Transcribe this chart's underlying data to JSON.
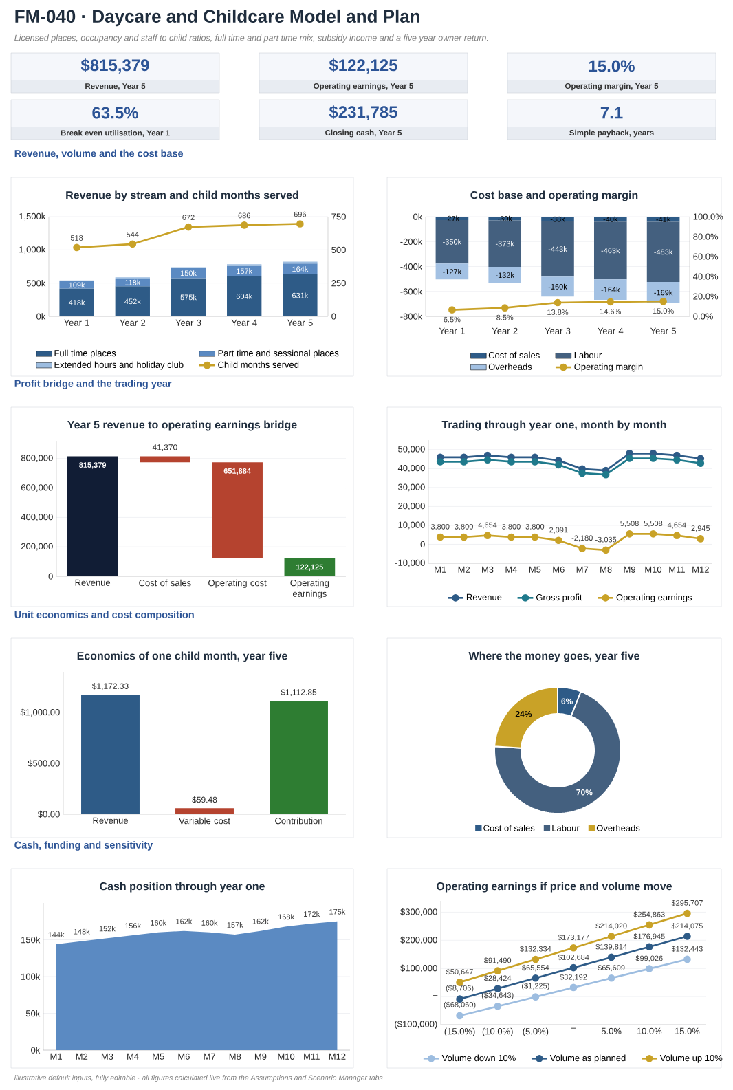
{
  "chart_data": [
    {
      "type": "other",
      "title": "FM-040 · Daycare and Childcare Model and Plan",
      "subtitle": "Licensed places, occupancy and staff to child ratios, full time and part time mix, subsidy income and a five year owner return.",
      "annotations": [
        "$815,379",
        "Revenue, Year 5",
        "$122,125",
        "Operating earnings, Year 5",
        "15.0%",
        "Operating margin, Year 5",
        "63.5%",
        "Break even utilisation, Year 1",
        "$231,785",
        "Closing cash, Year 5",
        "7.1",
        "Simple payback, years",
        "Revenue, volume and the cost base",
        "Profit bridge and the trading year",
        "Unit economics and cost composition",
        "Cash, funding and sensitivity",
        "illustrative default inputs, fully editable · all figures calculated live from the Assumptions and Scenario Manager tabs"
      ]
    },
    {
      "type": "bar",
      "title": "Revenue by stream and child months served",
      "stacked": true,
      "categories": [
        "Year 1",
        "Year 2",
        "Year 3",
        "Year 4",
        "Year 5"
      ],
      "series": [
        {
          "name": "Full time places",
          "color": "#2e5b87",
          "values": [
            418,
            452,
            575,
            604,
            631
          ],
          "value_labels": [
            "418k",
            "452k",
            "575k",
            "604k",
            "631k"
          ]
        },
        {
          "name": "Part time and sessional places",
          "color": "#5b8ac2",
          "values": [
            109,
            118,
            150,
            157,
            164
          ],
          "value_labels": [
            "109k",
            "118k",
            "150k",
            "157k",
            "164k"
          ]
        },
        {
          "name": "Extended hours and holiday club",
          "color": "#9dbde0",
          "values": [
            14,
            16,
            16,
            22,
            28
          ]
        },
        {
          "name": "Child months served",
          "type": "line",
          "axis": "y2",
          "color": "#c9a227",
          "values": [
            518,
            544,
            672,
            686,
            696
          ],
          "value_labels": [
            "518",
            "544",
            "672",
            "686",
            "696"
          ]
        }
      ],
      "ylim": [
        0,
        1500
      ],
      "yticks": [
        {
          "value": 0,
          "label": "0k"
        },
        {
          "value": 500,
          "label": "500k"
        },
        {
          "value": 1000,
          "label": "1,000k"
        },
        {
          "value": 1500,
          "label": "1,500k"
        }
      ],
      "y2lim": [
        0,
        750
      ],
      "y2ticks": [
        0,
        250,
        500,
        750
      ],
      "grid": "y",
      "legend": "bottom",
      "marker": "circle"
    },
    {
      "type": "bar",
      "title": "Cost base and operating margin",
      "stacked": true,
      "categories": [
        "Year 1",
        "Year 2",
        "Year 3",
        "Year 4",
        "Year 5"
      ],
      "series": [
        {
          "name": "Cost of sales",
          "color": "#2e5b87",
          "values": [
            -27,
            -30,
            -38,
            -40,
            -41
          ],
          "value_labels": [
            "-27k",
            "-30k",
            "-38k",
            "-40k",
            "-41k"
          ]
        },
        {
          "name": "Labour",
          "color": "#44607f",
          "values": [
            -350,
            -373,
            -443,
            -463,
            -483
          ],
          "value_labels": [
            "-350k",
            "-373k",
            "-443k",
            "-463k",
            "-483k"
          ]
        },
        {
          "name": "Overheads",
          "color": "#a3c1e3",
          "values": [
            -127,
            -132,
            -160,
            -164,
            -169
          ],
          "value_labels": [
            "-127k",
            "-132k",
            "-160k",
            "-164k",
            "-169k"
          ]
        },
        {
          "name": "Operating margin",
          "type": "line",
          "axis": "y2",
          "color": "#c9a227",
          "values": [
            6.5,
            8.5,
            13.8,
            14.6,
            15.0
          ],
          "value_labels": [
            "6.5%",
            "8.5%",
            "13.8%",
            "14.6%",
            "15.0%"
          ]
        }
      ],
      "ylim": [
        -800,
        0
      ],
      "yticks": [
        {
          "value": -800,
          "label": "-800k"
        },
        {
          "value": -600,
          "label": "-600k"
        },
        {
          "value": -400,
          "label": "-400k"
        },
        {
          "value": -200,
          "label": "-200k"
        },
        {
          "value": 0,
          "label": "0k"
        }
      ],
      "y2lim": [
        0,
        100
      ],
      "y2ticks": [
        {
          "value": 0,
          "label": "0.0%"
        },
        {
          "value": 20,
          "label": "20.0%"
        },
        {
          "value": 40,
          "label": "40.0%"
        },
        {
          "value": 60,
          "label": "60.0%"
        },
        {
          "value": 80,
          "label": "80.0%"
        },
        {
          "value": 100,
          "label": "100.0%"
        }
      ],
      "grid": "y",
      "legend": "bottom",
      "marker": "circle"
    },
    {
      "type": "bar",
      "title": "Year 5 revenue to operating earnings bridge",
      "categories": [
        "Revenue",
        "Cost of sales",
        "Operating cost",
        "Operating earnings"
      ],
      "values": [
        815379,
        41370,
        651884,
        122125
      ],
      "base": [
        0,
        774009,
        122125,
        0
      ],
      "colors": [
        "#111d35",
        "#b5432f",
        "#b5432f",
        "#2e7d32"
      ],
      "value_labels": [
        "815,379",
        "41,370",
        "651,884",
        "122,125"
      ],
      "ylim": [
        0,
        920000
      ],
      "yticks": [
        0,
        {
          "value": 200000,
          "label": "200,000"
        },
        {
          "value": 400000,
          "label": "400,000"
        },
        {
          "value": 600000,
          "label": "600,000"
        },
        {
          "value": 800000,
          "label": "800,000"
        }
      ],
      "grid": "y"
    },
    {
      "type": "line",
      "title": "Trading through year one, month by month",
      "categories": [
        "M1",
        "M2",
        "M3",
        "M4",
        "M5",
        "M6",
        "M7",
        "M8",
        "M9",
        "M10",
        "M11",
        "M12"
      ],
      "series": [
        {
          "name": "Revenue",
          "color": "#2e5b87",
          "values": [
            46000,
            46000,
            47000,
            46000,
            46000,
            44300,
            39800,
            39000,
            48000,
            48000,
            47000,
            45300
          ]
        },
        {
          "name": "Gross profit",
          "color": "#1f7a8c",
          "values": [
            43600,
            43600,
            44600,
            43600,
            43600,
            42000,
            37600,
            36800,
            45400,
            45400,
            44600,
            42800
          ]
        },
        {
          "name": "Operating earnings",
          "color": "#c9a227",
          "values": [
            3800,
            3800,
            4654,
            3800,
            3800,
            2091,
            -2180,
            -3035,
            5508,
            5508,
            4654,
            2945
          ],
          "value_labels": [
            "3,800",
            "3,800",
            "4,654",
            "3,800",
            "3,800",
            "2,091",
            "-2,180",
            "-3,035",
            "5,508",
            "5,508",
            "4,654",
            "2,945"
          ]
        }
      ],
      "ylim": [
        -10000,
        55000
      ],
      "yticks": [
        {
          "value": -10000,
          "label": "-10,000"
        },
        0,
        {
          "value": 10000,
          "label": "10,000"
        },
        {
          "value": 20000,
          "label": "20,000"
        },
        {
          "value": 30000,
          "label": "30,000"
        },
        {
          "value": 40000,
          "label": "40,000"
        },
        {
          "value": 50000,
          "label": "50,000"
        }
      ],
      "grid": "y",
      "legend": "bottom",
      "marker": "circle"
    },
    {
      "type": "bar",
      "title": "Economics of one child month, year five",
      "categories": [
        "Revenue",
        "Variable cost",
        "Contribution"
      ],
      "values": [
        1172.33,
        59.48,
        1112.85
      ],
      "colors": [
        "#2e5b87",
        "#b5432f",
        "#2e7d32"
      ],
      "value_labels": [
        "$1,172.33",
        "$59.48",
        "$1,112.85"
      ],
      "ylim": [
        0,
        1400
      ],
      "yticks": [
        {
          "value": 0,
          "label": "$0.00"
        },
        {
          "value": 500,
          "label": "$500.00"
        },
        {
          "value": 1000,
          "label": "$1,000.00"
        }
      ]
    },
    {
      "type": "donut",
      "title": "Where the money goes, year five",
      "categories": [
        "Cost of sales",
        "Labour",
        "Overheads"
      ],
      "values": [
        6,
        70,
        24
      ],
      "colors": [
        "#2e5b87",
        "#44607f",
        "#c9a227"
      ],
      "value_labels": [
        "6%",
        "70%",
        "24%"
      ],
      "legend": "bottom"
    },
    {
      "type": "area",
      "title": "Cash position through year one",
      "categories": [
        "M1",
        "M2",
        "M3",
        "M4",
        "M5",
        "M6",
        "M7",
        "M8",
        "M9",
        "M10",
        "M11",
        "M12"
      ],
      "values": [
        144,
        148,
        152,
        156,
        160,
        162,
        160,
        157,
        162,
        168,
        172,
        175
      ],
      "color": "#5b8ac2",
      "value_labels": [
        "144k",
        "148k",
        "152k",
        "156k",
        "160k",
        "162k",
        "160k",
        "157k",
        "162k",
        "168k",
        "172k",
        "175k"
      ],
      "ylim": [
        0,
        200
      ],
      "yticks": [
        {
          "value": 0,
          "label": "0k"
        },
        {
          "value": 50,
          "label": "50k"
        },
        {
          "value": 100,
          "label": "100k"
        },
        {
          "value": 150,
          "label": "150k"
        }
      ],
      "grid": "y"
    },
    {
      "type": "line",
      "title": "Operating earnings if price and volume move",
      "categories": [
        "(15.0%)",
        "(10.0%)",
        "(5.0%)",
        "–",
        "5.0%",
        "10.0%",
        "15.0%"
      ],
      "series": [
        {
          "name": "Volume down 10%",
          "color": "#9dbde0",
          "values": [
            -68060,
            -34643,
            -1225,
            32192,
            65609,
            99026,
            132443
          ],
          "value_labels": [
            "($68,060)",
            "($34,643)",
            "($1,225)",
            "$32,192",
            "$65,609",
            "$99,026",
            "$132,443"
          ]
        },
        {
          "name": "Volume as planned",
          "color": "#2e5b87",
          "values": [
            -8706,
            28424,
            65554,
            102684,
            139814,
            176945,
            214075
          ],
          "value_labels": [
            "($8,706)",
            "$28,424",
            "$65,554",
            "$102,684",
            "$139,814",
            "$176,945",
            "$214,075"
          ]
        },
        {
          "name": "Volume up 10%",
          "color": "#c9a227",
          "values": [
            50647,
            91490,
            132334,
            173177,
            214020,
            254863,
            295707
          ],
          "value_labels": [
            "$50,647",
            "$91,490",
            "$132,334",
            "$173,177",
            "$214,020",
            "$254,863",
            "$295,707"
          ]
        }
      ],
      "ylim": [
        -100000,
        340000
      ],
      "yticks": [
        {
          "value": -100000,
          "label": "($100,000)"
        },
        {
          "value": 0,
          "label": "–"
        },
        {
          "value": 100000,
          "label": "$100,000"
        },
        {
          "value": 200000,
          "label": "$200,000"
        },
        {
          "value": 300000,
          "label": "$300,000"
        }
      ],
      "grid": "y",
      "legend": "bottom",
      "marker": "circle"
    }
  ]
}
